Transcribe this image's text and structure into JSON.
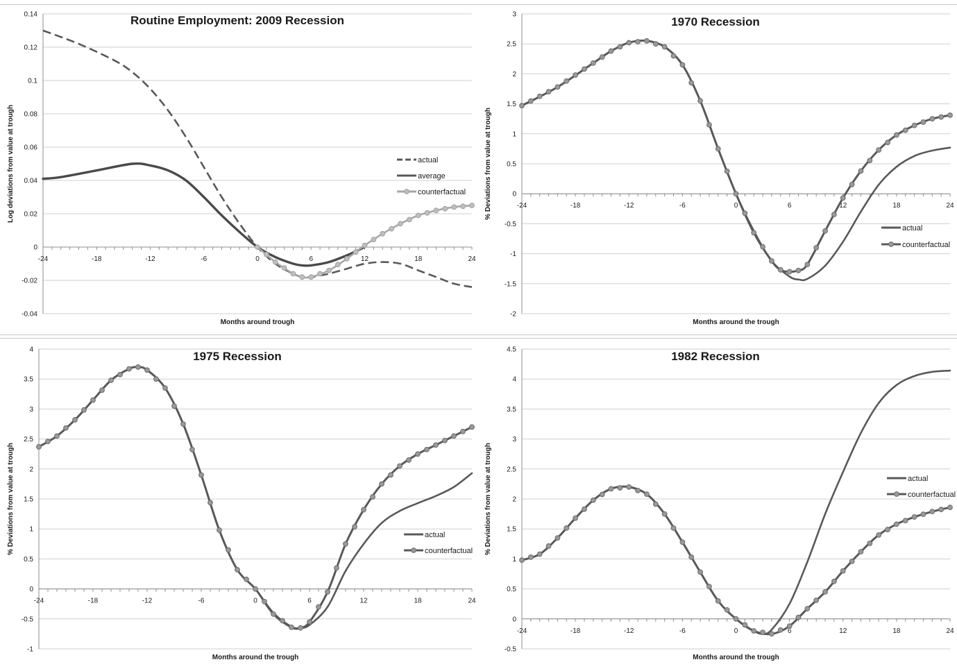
{
  "chart_data": [
    {
      "type": "line",
      "title": "Routine Employment: 2009 Recession",
      "xlabel": "Months around trough",
      "ylabel": "Log deviations from value at trough",
      "xlim": [
        -24,
        24
      ],
      "ylim": [
        -0.04,
        0.14
      ],
      "xticks": [
        "-24",
        "-18",
        "-12",
        "-6",
        "0",
        "6",
        "12",
        "18",
        "24"
      ],
      "yticks": [
        "-0.04",
        "-0.02",
        "0",
        "0.02",
        "0.04",
        "0.06",
        "0.08",
        "0.1",
        "0.12",
        "0.14"
      ],
      "grid": true,
      "legend_position": "right",
      "series": [
        {
          "name": "actual",
          "style": "dashed",
          "points": [
            [
              -24,
              0.13
            ],
            [
              -20,
              0.122
            ],
            [
              -16,
              0.112
            ],
            [
              -14,
              0.105
            ],
            [
              -12,
              0.095
            ],
            [
              -10,
              0.082
            ],
            [
              -8,
              0.066
            ],
            [
              -6,
              0.048
            ],
            [
              -4,
              0.03
            ],
            [
              -2,
              0.014
            ],
            [
              0,
              0
            ],
            [
              2,
              -0.01
            ],
            [
              4,
              -0.016
            ],
            [
              5,
              -0.018
            ],
            [
              6,
              -0.018
            ],
            [
              8,
              -0.016
            ],
            [
              10,
              -0.013
            ],
            [
              12,
              -0.01
            ],
            [
              14,
              -0.009
            ],
            [
              16,
              -0.01
            ],
            [
              18,
              -0.014
            ],
            [
              20,
              -0.018
            ],
            [
              22,
              -0.022
            ],
            [
              24,
              -0.024
            ]
          ]
        },
        {
          "name": "average",
          "style": "solid-thick",
          "points": [
            [
              -24,
              0.041
            ],
            [
              -22,
              0.042
            ],
            [
              -18,
              0.046
            ],
            [
              -14,
              0.05
            ],
            [
              -12,
              0.049
            ],
            [
              -10,
              0.046
            ],
            [
              -8,
              0.04
            ],
            [
              -6,
              0.03
            ],
            [
              -4,
              0.019
            ],
            [
              -2,
              0.009
            ],
            [
              0,
              0
            ],
            [
              2,
              -0.006
            ],
            [
              4,
              -0.01
            ],
            [
              5,
              -0.011
            ],
            [
              6,
              -0.011
            ],
            [
              8,
              -0.009
            ],
            [
              10,
              -0.005
            ],
            [
              12,
              0
            ]
          ]
        },
        {
          "name": "counterfactual",
          "style": "solid-markers",
          "points": [
            [
              0,
              0
            ],
            [
              2,
              -0.009
            ],
            [
              4,
              -0.016
            ],
            [
              5,
              -0.018
            ],
            [
              6,
              -0.018
            ],
            [
              8,
              -0.014
            ],
            [
              10,
              -0.007
            ],
            [
              12,
              0.001
            ],
            [
              14,
              0.008
            ],
            [
              16,
              0.014
            ],
            [
              18,
              0.019
            ],
            [
              20,
              0.022
            ],
            [
              22,
              0.024
            ],
            [
              24,
              0.025
            ]
          ]
        }
      ]
    },
    {
      "type": "line",
      "title": "1970 Recession",
      "xlabel": "Months around the trough",
      "ylabel": "% Deviations from value at trough",
      "xlim": [
        -24,
        24
      ],
      "ylim": [
        -2,
        3
      ],
      "xticks": [
        "-24",
        "-18",
        "-12",
        "-6",
        "0",
        "6",
        "12",
        "18",
        "24"
      ],
      "yticks": [
        "-2",
        "-1.5",
        "-1",
        "-0.5",
        "0",
        "0.5",
        "1",
        "1.5",
        "2",
        "2.5",
        "3"
      ],
      "grid": true,
      "legend_position": "right",
      "series": [
        {
          "name": "actual",
          "style": "solid",
          "points": [
            [
              -24,
              1.47
            ],
            [
              -20,
              1.78
            ],
            [
              -16,
              2.18
            ],
            [
              -14,
              2.38
            ],
            [
              -12,
              2.52
            ],
            [
              -10,
              2.55
            ],
            [
              -8,
              2.45
            ],
            [
              -6,
              2.15
            ],
            [
              -4,
              1.55
            ],
            [
              -2,
              0.75
            ],
            [
              0,
              0
            ],
            [
              2,
              -0.62
            ],
            [
              4,
              -1.12
            ],
            [
              6,
              -1.38
            ],
            [
              7,
              -1.43
            ],
            [
              8,
              -1.42
            ],
            [
              10,
              -1.2
            ],
            [
              12,
              -0.8
            ],
            [
              14,
              -0.3
            ],
            [
              16,
              0.15
            ],
            [
              18,
              0.45
            ],
            [
              20,
              0.63
            ],
            [
              22,
              0.72
            ],
            [
              24,
              0.77
            ]
          ]
        },
        {
          "name": "counterfactual",
          "style": "solid-markers",
          "points": [
            [
              -24,
              1.47
            ],
            [
              -20,
              1.78
            ],
            [
              -16,
              2.18
            ],
            [
              -14,
              2.38
            ],
            [
              -12,
              2.52
            ],
            [
              -10,
              2.55
            ],
            [
              -8,
              2.45
            ],
            [
              -6,
              2.15
            ],
            [
              -4,
              1.55
            ],
            [
              -2,
              0.75
            ],
            [
              0,
              0
            ],
            [
              2,
              -0.65
            ],
            [
              4,
              -1.12
            ],
            [
              5,
              -1.27
            ],
            [
              6,
              -1.3
            ],
            [
              7,
              -1.28
            ],
            [
              8,
              -1.18
            ],
            [
              10,
              -0.62
            ],
            [
              12,
              -0.07
            ],
            [
              14,
              0.38
            ],
            [
              16,
              0.73
            ],
            [
              18,
              0.98
            ],
            [
              20,
              1.14
            ],
            [
              22,
              1.25
            ],
            [
              24,
              1.31
            ]
          ]
        }
      ]
    },
    {
      "type": "line",
      "title": "1975 Recession",
      "xlabel": "Months around the trough",
      "ylabel": "% Deviations from value at trough",
      "xlim": [
        -24,
        24
      ],
      "ylim": [
        -1,
        4
      ],
      "xticks": [
        "-24",
        "-18",
        "-12",
        "-6",
        "0",
        "6",
        "12",
        "18",
        "24"
      ],
      "yticks": [
        "-1",
        "-0.5",
        "0",
        "0.5",
        "1",
        "1.5",
        "2",
        "2.5",
        "3",
        "3.5",
        "4"
      ],
      "grid": true,
      "legend_position": "right",
      "series": [
        {
          "name": "actual",
          "style": "solid",
          "points": [
            [
              -24,
              2.37
            ],
            [
              -22,
              2.55
            ],
            [
              -20,
              2.82
            ],
            [
              -18,
              3.15
            ],
            [
              -16,
              3.48
            ],
            [
              -14,
              3.67
            ],
            [
              -13,
              3.7
            ],
            [
              -12,
              3.65
            ],
            [
              -10,
              3.35
            ],
            [
              -8,
              2.75
            ],
            [
              -6,
              1.9
            ],
            [
              -4,
              0.98
            ],
            [
              -2,
              0.32
            ],
            [
              0,
              0
            ],
            [
              2,
              -0.4
            ],
            [
              4,
              -0.63
            ],
            [
              5,
              -0.65
            ],
            [
              6,
              -0.6
            ],
            [
              8,
              -0.3
            ],
            [
              10,
              0.3
            ],
            [
              12,
              0.75
            ],
            [
              14,
              1.1
            ],
            [
              16,
              1.3
            ],
            [
              18,
              1.43
            ],
            [
              20,
              1.55
            ],
            [
              22,
              1.7
            ],
            [
              24,
              1.93
            ]
          ]
        },
        {
          "name": "counterfactual",
          "style": "solid-markers",
          "points": [
            [
              -24,
              2.37
            ],
            [
              -22,
              2.55
            ],
            [
              -20,
              2.82
            ],
            [
              -18,
              3.15
            ],
            [
              -16,
              3.48
            ],
            [
              -14,
              3.67
            ],
            [
              -13,
              3.7
            ],
            [
              -12,
              3.65
            ],
            [
              -10,
              3.35
            ],
            [
              -8,
              2.75
            ],
            [
              -6,
              1.9
            ],
            [
              -4,
              0.98
            ],
            [
              -2,
              0.32
            ],
            [
              0,
              0
            ],
            [
              2,
              -0.42
            ],
            [
              4,
              -0.64
            ],
            [
              5,
              -0.65
            ],
            [
              6,
              -0.55
            ],
            [
              8,
              -0.05
            ],
            [
              10,
              0.75
            ],
            [
              12,
              1.32
            ],
            [
              14,
              1.75
            ],
            [
              16,
              2.05
            ],
            [
              18,
              2.25
            ],
            [
              20,
              2.4
            ],
            [
              22,
              2.55
            ],
            [
              24,
              2.7
            ]
          ]
        }
      ]
    },
    {
      "type": "line",
      "title": "1982 Recession",
      "xlabel": "Months around the trough",
      "ylabel": "% Deviations from value at trough",
      "xlim": [
        -24,
        24
      ],
      "ylim": [
        -0.5,
        4.5
      ],
      "xticks": [
        "-24",
        "-18",
        "-12",
        "-6",
        "0",
        "6",
        "12",
        "18",
        "24"
      ],
      "yticks": [
        "-0.5",
        "0",
        "0.5",
        "1",
        "1.5",
        "2",
        "2.5",
        "3",
        "3.5",
        "4",
        "4.5"
      ],
      "grid": true,
      "legend_position": "right",
      "series": [
        {
          "name": "actual",
          "style": "solid",
          "points": [
            [
              -24,
              0.98
            ],
            [
              -22,
              1.08
            ],
            [
              -20,
              1.35
            ],
            [
              -18,
              1.68
            ],
            [
              -16,
              1.98
            ],
            [
              -14,
              2.17
            ],
            [
              -12,
              2.2
            ],
            [
              -10,
              2.08
            ],
            [
              -8,
              1.75
            ],
            [
              -6,
              1.28
            ],
            [
              -4,
              0.78
            ],
            [
              -2,
              0.3
            ],
            [
              0,
              0
            ],
            [
              2,
              -0.2
            ],
            [
              3,
              -0.25
            ],
            [
              4,
              -0.18
            ],
            [
              6,
              0.25
            ],
            [
              8,
              0.95
            ],
            [
              10,
              1.75
            ],
            [
              12,
              2.45
            ],
            [
              14,
              3.1
            ],
            [
              16,
              3.6
            ],
            [
              18,
              3.9
            ],
            [
              20,
              4.05
            ],
            [
              22,
              4.12
            ],
            [
              24,
              4.14
            ]
          ]
        },
        {
          "name": "counterfactual",
          "style": "solid-markers",
          "points": [
            [
              -24,
              0.98
            ],
            [
              -22,
              1.08
            ],
            [
              -20,
              1.35
            ],
            [
              -18,
              1.68
            ],
            [
              -16,
              1.98
            ],
            [
              -14,
              2.17
            ],
            [
              -12,
              2.2
            ],
            [
              -10,
              2.08
            ],
            [
              -8,
              1.75
            ],
            [
              -6,
              1.28
            ],
            [
              -4,
              0.78
            ],
            [
              -2,
              0.3
            ],
            [
              0,
              0
            ],
            [
              2,
              -0.2
            ],
            [
              4,
              -0.25
            ],
            [
              6,
              -0.12
            ],
            [
              8,
              0.17
            ],
            [
              10,
              0.45
            ],
            [
              12,
              0.8
            ],
            [
              14,
              1.12
            ],
            [
              16,
              1.4
            ],
            [
              18,
              1.58
            ],
            [
              20,
              1.7
            ],
            [
              22,
              1.79
            ],
            [
              24,
              1.86
            ]
          ]
        }
      ]
    }
  ],
  "colors": {
    "line": "#595959",
    "line_dark": "#4a4a4a",
    "marker_light": "#bfbfbf",
    "grid": "#cfcfcf",
    "axis": "#8c8c8c",
    "text": "#1a1a1a"
  }
}
